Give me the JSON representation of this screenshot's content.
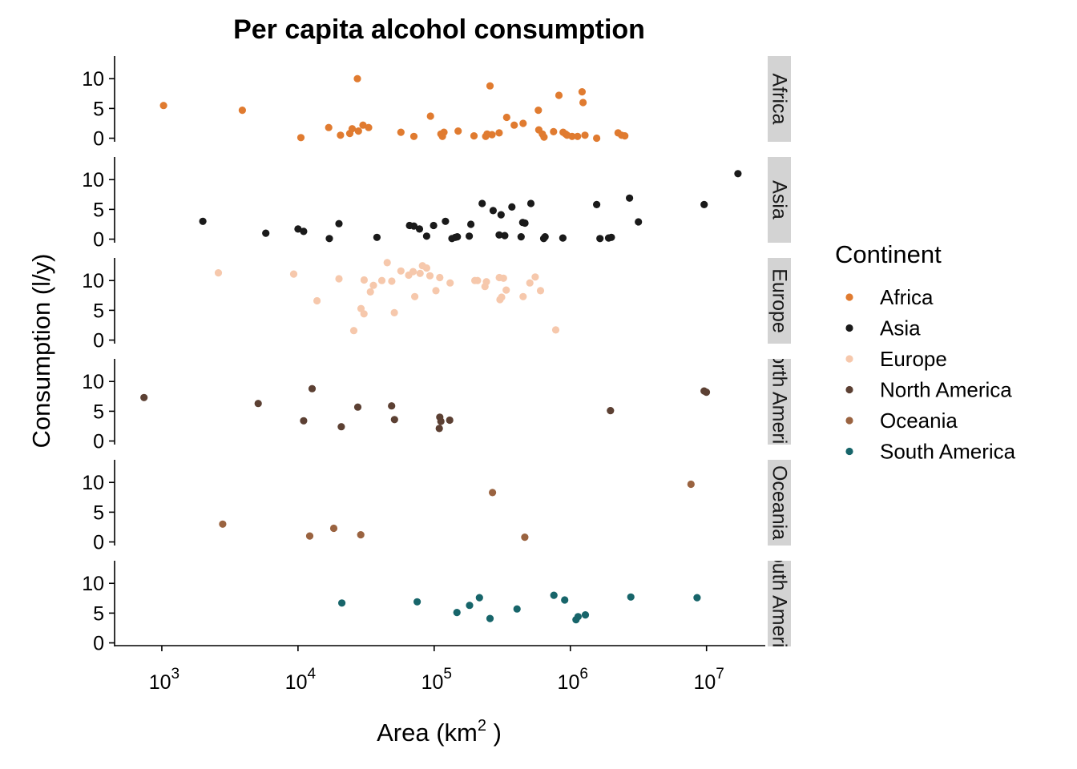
{
  "chart_data": {
    "type": "scatter",
    "title": "Per capita alcohol consumption",
    "xlabel_main": "Area (km",
    "xlabel_sup": "2",
    "xlabel_end": " )",
    "ylabel": "Consumption (l/y)",
    "x_scale": "log10",
    "xlim": [
      450,
      27000000
    ],
    "ylim": [
      -0.6,
      13.8
    ],
    "x_ticks": [
      1000,
      10000,
      100000,
      1000000,
      10000000
    ],
    "x_tick_labels": [
      {
        "base": "10",
        "exp": "3"
      },
      {
        "base": "10",
        "exp": "4"
      },
      {
        "base": "10",
        "exp": "5"
      },
      {
        "base": "10",
        "exp": "6"
      },
      {
        "base": "10",
        "exp": "7"
      }
    ],
    "y_ticks": [
      0,
      5,
      10
    ],
    "y_tick_labels": [
      "0",
      "5",
      "10"
    ],
    "facet": "rows",
    "legend": {
      "title": "Continent",
      "position": "right"
    },
    "panels": [
      {
        "name": "Africa",
        "strip_label": "Africa",
        "color": "#E07B30",
        "points": [
          [
            1030,
            5.5
          ],
          [
            3900,
            4.7
          ],
          [
            10500,
            0.1
          ],
          [
            16800,
            1.8
          ],
          [
            20500,
            0.5
          ],
          [
            24000,
            0.8
          ],
          [
            25000,
            1.6
          ],
          [
            27300,
            10.0
          ],
          [
            27800,
            1.2
          ],
          [
            30000,
            2.2
          ],
          [
            33000,
            1.8
          ],
          [
            57000,
            1.0
          ],
          [
            71000,
            0.3
          ],
          [
            94000,
            3.7
          ],
          [
            112000,
            0.7
          ],
          [
            115000,
            0.3
          ],
          [
            118000,
            1.0
          ],
          [
            150000,
            1.2
          ],
          [
            196000,
            0.4
          ],
          [
            239000,
            0.3
          ],
          [
            245000,
            0.7
          ],
          [
            257000,
            8.8
          ],
          [
            266000,
            0.6
          ],
          [
            300000,
            0.9
          ],
          [
            341000,
            3.5
          ],
          [
            387000,
            2.2
          ],
          [
            450000,
            2.5
          ],
          [
            582000,
            4.7
          ],
          [
            587000,
            1.4
          ],
          [
            623000,
            0.7
          ],
          [
            641000,
            0.2
          ],
          [
            753000,
            1.1
          ],
          [
            824000,
            7.2
          ],
          [
            885000,
            1.0
          ],
          [
            923000,
            0.7
          ],
          [
            947000,
            0.5
          ],
          [
            1030000,
            0.3
          ],
          [
            1130000,
            0.3
          ],
          [
            1220000,
            7.8
          ],
          [
            1240000,
            6.0
          ],
          [
            1280000,
            0.5
          ],
          [
            1560000,
            0.0
          ],
          [
            2240000,
            0.9
          ],
          [
            2380000,
            0.5
          ],
          [
            2510000,
            0.4
          ]
        ]
      },
      {
        "name": "Asia",
        "strip_label": "Asia",
        "color": "#1A1A1A",
        "points": [
          [
            2000,
            3.0
          ],
          [
            5800,
            1.0
          ],
          [
            10000,
            1.7
          ],
          [
            11000,
            1.3
          ],
          [
            17000,
            0.1
          ],
          [
            20000,
            2.6
          ],
          [
            38000,
            0.3
          ],
          [
            66000,
            2.3
          ],
          [
            71000,
            2.2
          ],
          [
            78000,
            1.7
          ],
          [
            88000,
            0.5
          ],
          [
            99000,
            2.3
          ],
          [
            121000,
            3.0
          ],
          [
            135000,
            0.1
          ],
          [
            143000,
            0.3
          ],
          [
            148000,
            0.4
          ],
          [
            181000,
            0.5
          ],
          [
            186000,
            2.5
          ],
          [
            225000,
            6.0
          ],
          [
            271000,
            4.8
          ],
          [
            300000,
            0.7
          ],
          [
            310000,
            4.1
          ],
          [
            330000,
            0.6
          ],
          [
            372000,
            5.4
          ],
          [
            435000,
            0.4
          ],
          [
            447000,
            2.8
          ],
          [
            464000,
            2.7
          ],
          [
            513000,
            6.0
          ],
          [
            637000,
            0.1
          ],
          [
            652000,
            0.4
          ],
          [
            881000,
            0.2
          ],
          [
            1560000,
            5.8
          ],
          [
            1650000,
            0.1
          ],
          [
            1910000,
            0.2
          ],
          [
            2000000,
            0.3
          ],
          [
            2720000,
            6.9
          ],
          [
            3160000,
            2.9
          ],
          [
            9600000,
            5.8
          ],
          [
            17000000,
            11.0
          ]
        ]
      },
      {
        "name": "Europe",
        "strip_label": "Europe",
        "color": "#F6C8AC",
        "points": [
          [
            2600,
            11.3
          ],
          [
            9300,
            11.1
          ],
          [
            13800,
            6.6
          ],
          [
            20000,
            10.3
          ],
          [
            25700,
            1.6
          ],
          [
            29000,
            5.3
          ],
          [
            30500,
            4.4
          ],
          [
            30600,
            10.1
          ],
          [
            34000,
            8.1
          ],
          [
            35800,
            9.2
          ],
          [
            41300,
            10.0
          ],
          [
            45200,
            13.0
          ],
          [
            48800,
            9.9
          ],
          [
            51000,
            4.6
          ],
          [
            57000,
            11.6
          ],
          [
            65000,
            10.9
          ],
          [
            70000,
            11.5
          ],
          [
            72000,
            7.3
          ],
          [
            78800,
            11.2
          ],
          [
            82000,
            12.5
          ],
          [
            88000,
            12.1
          ],
          [
            93000,
            10.8
          ],
          [
            103000,
            8.3
          ],
          [
            110000,
            10.5
          ],
          [
            131000,
            9.6
          ],
          [
            199000,
            10.0
          ],
          [
            208000,
            10.0
          ],
          [
            236000,
            9.0
          ],
          [
            242000,
            9.8
          ],
          [
            301000,
            10.5
          ],
          [
            304000,
            6.8
          ],
          [
            313000,
            7.2
          ],
          [
            323000,
            10.4
          ],
          [
            338000,
            8.4
          ],
          [
            450000,
            7.3
          ],
          [
            504000,
            9.6
          ],
          [
            552000,
            10.6
          ],
          [
            604000,
            8.3
          ],
          [
            781000,
            1.7
          ]
        ]
      },
      {
        "name": "North America",
        "strip_label": "North America",
        "color": "#5C4033",
        "points": [
          [
            740,
            7.3
          ],
          [
            5100,
            6.3
          ],
          [
            11000,
            3.4
          ],
          [
            12700,
            8.8
          ],
          [
            20800,
            2.4
          ],
          [
            27500,
            5.7
          ],
          [
            48700,
            5.9
          ],
          [
            51100,
            3.6
          ],
          [
            109000,
            2.1
          ],
          [
            110000,
            4.0
          ],
          [
            112000,
            3.3
          ],
          [
            130000,
            3.5
          ],
          [
            1970000,
            5.1
          ],
          [
            9600000,
            8.4
          ],
          [
            9980000,
            8.2
          ]
        ]
      },
      {
        "name": "Oceania",
        "strip_label": "Oceania",
        "color": "#9A6340",
        "points": [
          [
            2800,
            3.0
          ],
          [
            12200,
            1.0
          ],
          [
            18300,
            2.3
          ],
          [
            28900,
            1.2
          ],
          [
            268000,
            8.3
          ],
          [
            463000,
            0.8
          ],
          [
            7690000,
            9.7
          ]
        ]
      },
      {
        "name": "South America",
        "strip_label": "South America",
        "color": "#17656A",
        "points": [
          [
            21000,
            6.7
          ],
          [
            75000,
            6.9
          ],
          [
            147000,
            5.1
          ],
          [
            182000,
            6.3
          ],
          [
            215000,
            7.6
          ],
          [
            257000,
            4.1
          ],
          [
            406000,
            5.7
          ],
          [
            757000,
            8.0
          ],
          [
            909000,
            7.2
          ],
          [
            1100000,
            3.9
          ],
          [
            1140000,
            4.4
          ],
          [
            1290000,
            4.7
          ],
          [
            2780000,
            7.7
          ],
          [
            8520000,
            7.6
          ]
        ]
      }
    ]
  }
}
